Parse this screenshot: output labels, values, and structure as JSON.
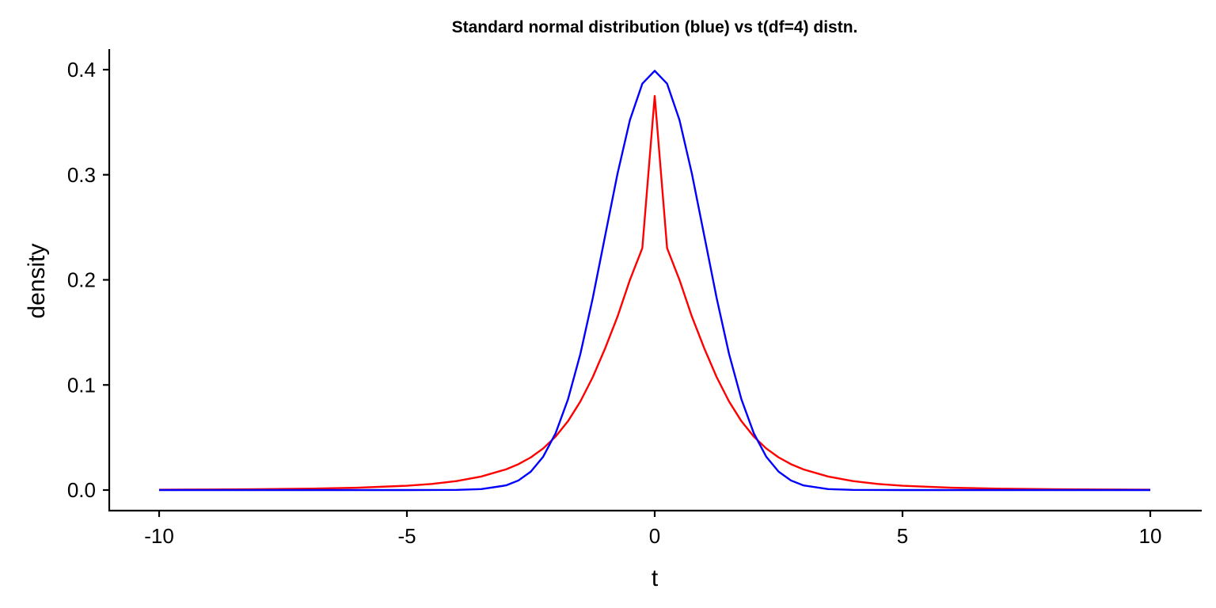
{
  "chart_data": {
    "type": "line",
    "title": "Standard normal distribution (blue) vs t(df=4) distn.",
    "xlabel": "t",
    "ylabel": "density",
    "xlim": [
      -10,
      10
    ],
    "ylim": [
      0,
      0.4
    ],
    "x_ticks": [
      -10,
      -5,
      0,
      5,
      10
    ],
    "x_tick_labels": [
      "-10",
      "-5",
      "0",
      "5",
      "10"
    ],
    "y_ticks": [
      0.0,
      0.1,
      0.2,
      0.3,
      0.4
    ],
    "y_tick_labels": [
      "0.0",
      "0.1",
      "0.2",
      "0.3",
      "0.4"
    ],
    "grid": false,
    "legend": "none",
    "x": [
      -10,
      -9,
      -8,
      -7,
      -6,
      -5,
      -4.5,
      -4,
      -3.5,
      -3,
      -2.75,
      -2.5,
      -2.25,
      -2,
      -1.75,
      -1.5,
      -1.25,
      -1,
      -0.75,
      -0.5,
      -0.25,
      0,
      0.25,
      0.5,
      0.75,
      1,
      1.25,
      1.5,
      1.75,
      2,
      2.25,
      2.5,
      2.75,
      3,
      3.5,
      4,
      4.5,
      5,
      6,
      7,
      8,
      9,
      10
    ],
    "series": [
      {
        "color": "#0000ff",
        "values": [
          0,
          0,
          0,
          0,
          0,
          1.5e-06,
          1.6e-05,
          0.000134,
          0.000873,
          0.004432,
          0.009094,
          0.017528,
          0.03174,
          0.053991,
          0.086277,
          0.129518,
          0.182649,
          0.241971,
          0.301137,
          0.352065,
          0.386668,
          0.398942,
          0.386668,
          0.352065,
          0.301137,
          0.241971,
          0.182649,
          0.129518,
          0.086277,
          0.053991,
          0.03174,
          0.017528,
          0.009094,
          0.004432,
          0.000873,
          0.000134,
          1.6e-05,
          1.5e-06,
          0,
          0,
          0,
          0,
          0
        ]
      },
      {
        "color": "#ff0000",
        "values": [
          0.000339,
          0.000508,
          0.00079,
          0.001284,
          0.002208,
          0.004109,
          0.005827,
          0.008527,
          0.012874,
          0.019693,
          0.0246,
          0.03107,
          0.039592,
          0.050816,
          0.065493,
          0.084265,
          0.107449,
          0.134885,
          0.1651,
          0.19996,
          0.230186,
          0.375,
          0.230186,
          0.19996,
          0.1651,
          0.134885,
          0.107449,
          0.084265,
          0.065493,
          0.050816,
          0.039592,
          0.03107,
          0.0246,
          0.019693,
          0.012874,
          0.008527,
          0.005827,
          0.004109,
          0.002208,
          0.001284,
          0.00079,
          0.000508,
          0.000339
        ]
      }
    ]
  }
}
